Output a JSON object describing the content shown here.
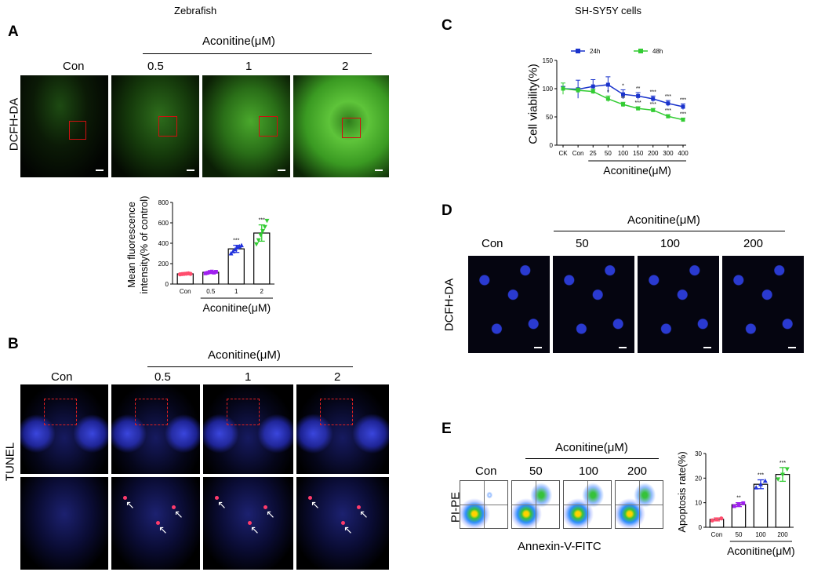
{
  "titles": {
    "zebrafish": "Zebrafish",
    "cells": "SH-SY5Y cells"
  },
  "panels": {
    "a": "A",
    "b": "B",
    "c": "C",
    "d": "D",
    "e": "E"
  },
  "groups": {
    "aconitine": "Aconitine(μM)",
    "con": "Con",
    "zf_doses": [
      "0.5",
      "1",
      "2"
    ],
    "cell_doses": [
      "50",
      "100",
      "200"
    ]
  },
  "labels": {
    "dcfh": "DCFH-DA",
    "tunel": "TUNEL",
    "pipe": "PI-PE",
    "annexin": "Annexin-V-FITC",
    "stars3": "***",
    "stars2": "**",
    "star1": "*"
  },
  "chart_data": [
    {
      "id": "A-bar",
      "type": "bar",
      "ylabel": "Mean fluorescence intensity(% of control)",
      "xlabel": "Aconitine(μM)",
      "categories": [
        "Con",
        "0.5",
        "1",
        "2"
      ],
      "values": [
        100,
        115,
        345,
        500
      ],
      "errors": [
        8,
        12,
        35,
        80
      ],
      "points": [
        [
          95,
          98,
          100,
          102,
          105,
          100
        ],
        [
          105,
          110,
          118,
          122,
          112,
          120
        ],
        [
          300,
          320,
          340,
          360,
          370,
          380
        ],
        [
          390,
          430,
          480,
          520,
          560,
          620
        ]
      ],
      "significance": [
        "",
        "",
        "***",
        "***"
      ],
      "ylim": [
        0,
        800
      ],
      "yticks": [
        0,
        200,
        400,
        600,
        800
      ],
      "colors": [
        "#ff4d6d",
        "#a020f0",
        "#2233dd",
        "#33cc33"
      ]
    },
    {
      "id": "C-line",
      "type": "line",
      "ylabel": "Cell viability(%)",
      "xlabel": "Aconitine(μM)",
      "categories": [
        "CK",
        "Con",
        "25",
        "50",
        "100",
        "150",
        "200",
        "300",
        "400"
      ],
      "ylim": [
        0,
        150
      ],
      "yticks": [
        0,
        50,
        100,
        150
      ],
      "series": [
        {
          "name": "24h",
          "color": "#1a33cc",
          "values": [
            100,
            99,
            104,
            107,
            90,
            87,
            82,
            74,
            68
          ],
          "errors": [
            4,
            16,
            12,
            14,
            8,
            6,
            5,
            5,
            5
          ],
          "sig": [
            "",
            "",
            "",
            "",
            "*",
            "**",
            "***",
            "***",
            "***"
          ]
        },
        {
          "name": "48h",
          "color": "#33cc33",
          "values": [
            100,
            97,
            95,
            82,
            72,
            65,
            62,
            51,
            45
          ],
          "errors": [
            10,
            4,
            4,
            5,
            4,
            3,
            3,
            3,
            3
          ],
          "sig": [
            "",
            "",
            "",
            "*",
            "**",
            "***",
            "***",
            "***",
            "***"
          ]
        }
      ],
      "legend": "top"
    },
    {
      "id": "E-bar",
      "type": "bar",
      "ylabel": "Apoptosis rate(%)",
      "xlabel": "Aconitine(μM)",
      "categories": [
        "Con",
        "50",
        "100",
        "200"
      ],
      "values": [
        3.2,
        9.2,
        17.5,
        21.5
      ],
      "errors": [
        0.6,
        0.8,
        1.8,
        2.8
      ],
      "points": [
        [
          2.8,
          3.2,
          3.6
        ],
        [
          8.6,
          9.3,
          9.8
        ],
        [
          16.2,
          17.5,
          18.9
        ],
        [
          19.5,
          21.4,
          23.6
        ]
      ],
      "significance": [
        "",
        "**",
        "***",
        "***"
      ],
      "ylim": [
        0,
        30
      ],
      "yticks": [
        0,
        10,
        20,
        30
      ],
      "colors": [
        "#ff4d6d",
        "#a020f0",
        "#2233dd",
        "#33cc33"
      ]
    }
  ]
}
